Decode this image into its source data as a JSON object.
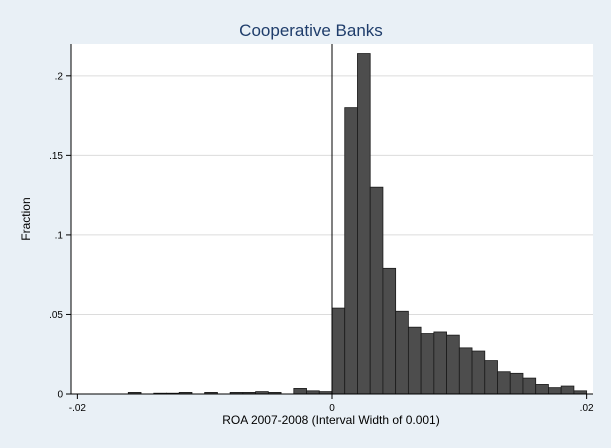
{
  "chart_data": {
    "type": "bar",
    "title": "Cooperative Banks",
    "xlabel": "ROA 2007-2008 (Interval Width of 0.001)",
    "ylabel": "Fraction",
    "xlim": [
      -0.0205,
      0.0205
    ],
    "ylim": [
      0,
      0.22
    ],
    "x_ticks": [
      -0.02,
      0,
      0.02
    ],
    "x_tick_labels": [
      "-.02",
      "0",
      ".02"
    ],
    "y_ticks": [
      0,
      0.05,
      0.1,
      0.15,
      0.2
    ],
    "y_tick_labels": [
      "0",
      ".05",
      ".1",
      ".15",
      ".2"
    ],
    "grid": true,
    "reference_line_x": 0,
    "bin_width": 0.001,
    "bins": [
      {
        "start": -0.016,
        "value": 0.001
      },
      {
        "start": -0.014,
        "value": 0.0005
      },
      {
        "start": -0.013,
        "value": 0.0005
      },
      {
        "start": -0.012,
        "value": 0.001
      },
      {
        "start": -0.01,
        "value": 0.001
      },
      {
        "start": -0.008,
        "value": 0.001
      },
      {
        "start": -0.007,
        "value": 0.001
      },
      {
        "start": -0.006,
        "value": 0.0015
      },
      {
        "start": -0.005,
        "value": 0.001
      },
      {
        "start": -0.003,
        "value": 0.0035
      },
      {
        "start": -0.002,
        "value": 0.002
      },
      {
        "start": -0.001,
        "value": 0.0015
      },
      {
        "start": 0.0,
        "value": 0.054
      },
      {
        "start": 0.001,
        "value": 0.18
      },
      {
        "start": 0.002,
        "value": 0.214
      },
      {
        "start": 0.003,
        "value": 0.13
      },
      {
        "start": 0.004,
        "value": 0.079
      },
      {
        "start": 0.005,
        "value": 0.052
      },
      {
        "start": 0.006,
        "value": 0.042
      },
      {
        "start": 0.007,
        "value": 0.038
      },
      {
        "start": 0.008,
        "value": 0.039
      },
      {
        "start": 0.009,
        "value": 0.037
      },
      {
        "start": 0.01,
        "value": 0.029
      },
      {
        "start": 0.011,
        "value": 0.027
      },
      {
        "start": 0.012,
        "value": 0.021
      },
      {
        "start": 0.013,
        "value": 0.014
      },
      {
        "start": 0.014,
        "value": 0.013
      },
      {
        "start": 0.015,
        "value": 0.01
      },
      {
        "start": 0.016,
        "value": 0.006
      },
      {
        "start": 0.017,
        "value": 0.004
      },
      {
        "start": 0.018,
        "value": 0.005
      },
      {
        "start": 0.019,
        "value": 0.002
      }
    ]
  }
}
